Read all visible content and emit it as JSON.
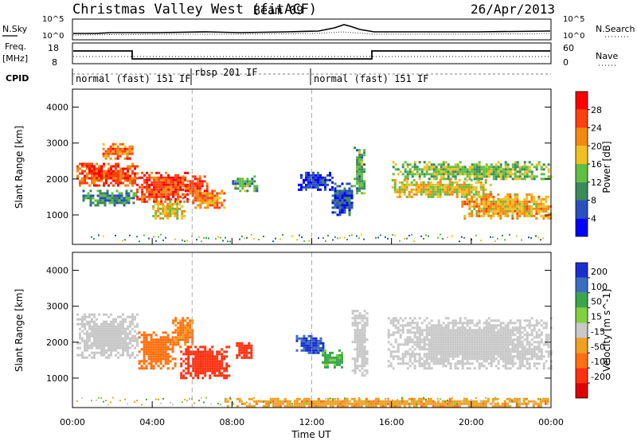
{
  "header": {
    "station": "Christmas Valley West (fitACF)",
    "beam": "Beam 09",
    "date": "26/Apr/2013"
  },
  "labels": {
    "nsky": "N.Sky",
    "nsearch": "N.Search",
    "freq": "Freq.",
    "mhz": "[MHz]",
    "nave": "Nave",
    "cpid": "CPID",
    "time_axis": "Time UT",
    "range_axis": "Slant Range [km]"
  },
  "noise_ticks": [
    "10^5",
    "10^0"
  ],
  "freq_ticks_left": [
    "18",
    "8"
  ],
  "nave_ticks_right": [
    "60",
    "0"
  ],
  "cpid_segments": [
    {
      "label": "normal (fast) 151 IF",
      "start_h": 0,
      "end_h": 6
    },
    {
      "label": "rbsp 201 IF",
      "start_h": 6,
      "end_h": 12
    },
    {
      "label": "normal (fast) 151 IF",
      "start_h": 12,
      "end_h": 24
    }
  ],
  "x_ticks": [
    "00:00",
    "04:00",
    "08:00",
    "12:00",
    "16:00",
    "20:00",
    "00:00"
  ],
  "y_ticks": [
    "1000",
    "2000",
    "3000",
    "4000"
  ],
  "colorbars": {
    "power": {
      "title": "Power [dB]",
      "labels": [
        "4",
        "8",
        "12",
        "16",
        "20",
        "24",
        "28"
      ],
      "colors": [
        "#0000ff",
        "#2a4fbf",
        "#3a8a5a",
        "#5fbf40",
        "#f0c020",
        "#f08a10",
        "#ff4010",
        "#ff0000"
      ]
    },
    "velocity": {
      "title": "Velocity [m s^-1]",
      "labels": [
        "200",
        "100",
        "50",
        "15",
        "-15",
        "-50",
        "-100",
        "-200"
      ],
      "colors": [
        "#1a2fd0",
        "#3a6fbf",
        "#3aa84a",
        "#80d040",
        "#c8c8c8",
        "#f0a020",
        "#ff7010",
        "#ff3010",
        "#e00000"
      ]
    }
  },
  "chart_data": {
    "type": "heatmap",
    "x_range_hours": [
      0,
      24
    ],
    "y_range_km": [
      180,
      4500
    ],
    "panels": [
      {
        "name": "Power",
        "units": "dB",
        "echo_regions": [
          {
            "t0": 0.2,
            "t1": 3.3,
            "r0": 1850,
            "r1": 2450,
            "value": 26
          },
          {
            "t0": 1.5,
            "t1": 3.0,
            "r0": 2600,
            "r1": 3000,
            "value": 24
          },
          {
            "t0": 0.5,
            "t1": 3.2,
            "r0": 1300,
            "r1": 1700,
            "value": 10
          },
          {
            "t0": 3.2,
            "t1": 5.8,
            "r0": 1400,
            "r1": 2200,
            "value": 27
          },
          {
            "t0": 4.0,
            "t1": 5.6,
            "r0": 900,
            "r1": 1400,
            "value": 18
          },
          {
            "t0": 5.5,
            "t1": 6.7,
            "r0": 1500,
            "r1": 2100,
            "value": 26
          },
          {
            "t0": 6.0,
            "t1": 7.6,
            "r0": 1200,
            "r1": 1700,
            "value": 22
          },
          {
            "t0": 8.0,
            "t1": 9.2,
            "r0": 1700,
            "r1": 2100,
            "value": 12
          },
          {
            "t0": 11.3,
            "t1": 13.0,
            "r0": 1700,
            "r1": 2200,
            "value": 4
          },
          {
            "t0": 13.0,
            "t1": 14.0,
            "r0": 1000,
            "r1": 1900,
            "value": 6
          },
          {
            "t0": 14.1,
            "t1": 14.6,
            "r0": 1600,
            "r1": 2900,
            "value": 12
          },
          {
            "t0": 15.8,
            "t1": 24.0,
            "r0": 2000,
            "r1": 2500,
            "value": 14
          },
          {
            "t0": 16.0,
            "t1": 21.0,
            "r0": 1500,
            "r1": 2000,
            "value": 18
          },
          {
            "t0": 19.5,
            "t1": 24.0,
            "r0": 900,
            "r1": 1600,
            "value": 20
          }
        ]
      },
      {
        "name": "Velocity",
        "units": "m s^-1",
        "echo_regions": [
          {
            "t0": 0.2,
            "t1": 3.3,
            "r0": 1600,
            "r1": 2800,
            "value": 0
          },
          {
            "t0": 3.3,
            "t1": 5.2,
            "r0": 1300,
            "r1": 2300,
            "value": -80
          },
          {
            "t0": 5.0,
            "t1": 6.0,
            "r0": 1900,
            "r1": 2700,
            "value": -60
          },
          {
            "t0": 5.4,
            "t1": 7.8,
            "r0": 1000,
            "r1": 1900,
            "value": -180
          },
          {
            "t0": 8.2,
            "t1": 9.0,
            "r0": 1600,
            "r1": 2000,
            "value": -150
          },
          {
            "t0": 11.2,
            "t1": 12.6,
            "r0": 1700,
            "r1": 2200,
            "value": 200
          },
          {
            "t0": 12.5,
            "t1": 13.5,
            "r0": 1300,
            "r1": 1800,
            "value": 60
          },
          {
            "t0": 14.0,
            "t1": 14.8,
            "r0": 1100,
            "r1": 2900,
            "value": 0
          },
          {
            "t0": 15.8,
            "t1": 24.0,
            "r0": 1300,
            "r1": 2700,
            "value": 0
          },
          {
            "t0": 7.5,
            "t1": 24.0,
            "r0": 200,
            "r1": 450,
            "value": -40
          }
        ]
      }
    ]
  }
}
